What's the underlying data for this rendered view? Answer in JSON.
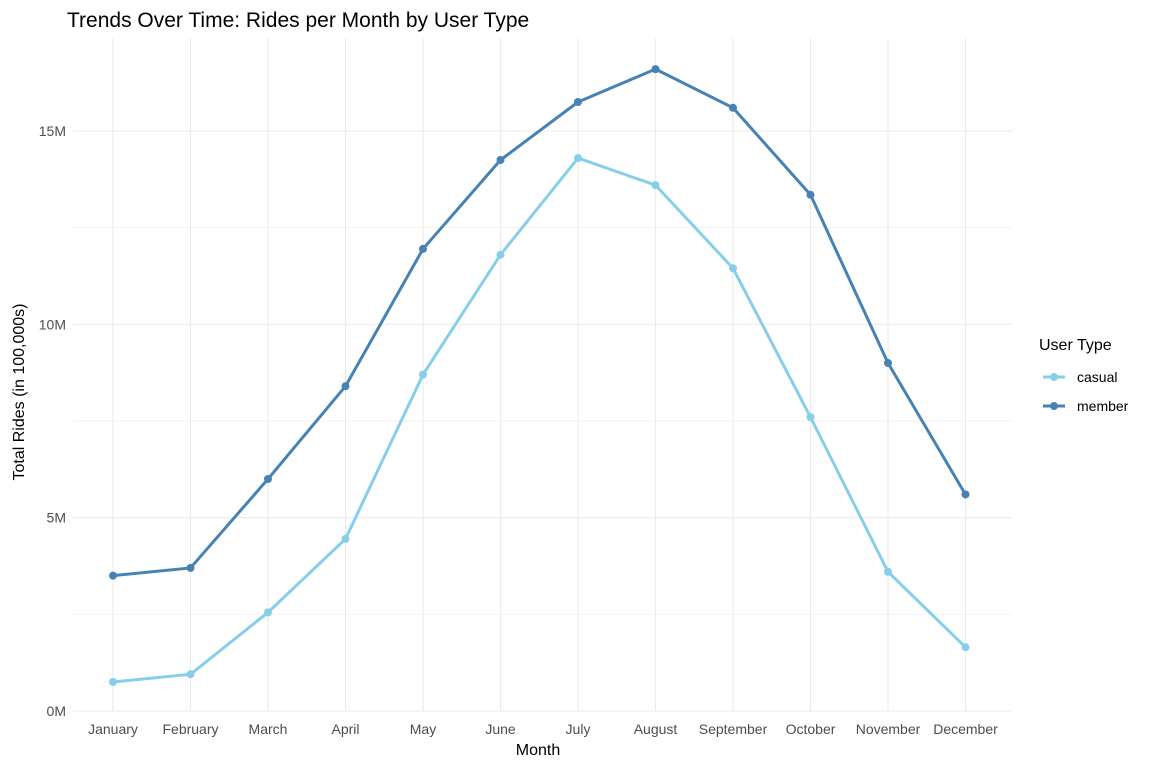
{
  "chart_data": {
    "type": "line",
    "title": "Trends Over Time: Rides per Month by User Type",
    "xlabel": "Month",
    "ylabel": "Total Rides (in 100,000s)",
    "categories": [
      "January",
      "February",
      "March",
      "April",
      "May",
      "June",
      "July",
      "August",
      "September",
      "October",
      "November",
      "December"
    ],
    "ylim": [
      0,
      17000000
    ],
    "y_ticks": [
      0,
      5000000,
      10000000,
      15000000
    ],
    "y_tick_labels": [
      "0M",
      "5M",
      "10M",
      "15M"
    ],
    "grid": true,
    "legend": {
      "title": "User Type",
      "placement": "right"
    },
    "series": [
      {
        "name": "casual",
        "color": "#87CEEB",
        "values": [
          750000,
          950000,
          2550000,
          4450000,
          8700000,
          11800000,
          14300000,
          13600000,
          11450000,
          7600000,
          3600000,
          1650000
        ]
      },
      {
        "name": "member",
        "color": "#4682B4",
        "values": [
          3500000,
          3700000,
          6000000,
          8400000,
          11950000,
          14250000,
          15750000,
          16600000,
          15600000,
          13350000,
          9000000,
          5600000
        ]
      }
    ]
  }
}
